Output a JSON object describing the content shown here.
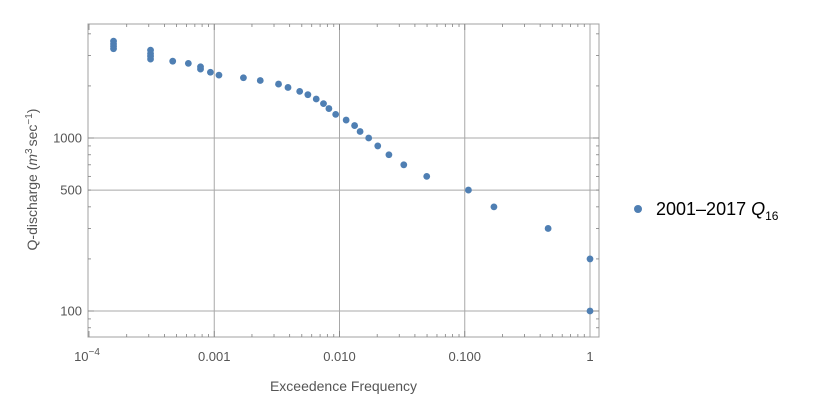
{
  "chart_data": {
    "type": "scatter",
    "xlabel": "Exceedence Frequency",
    "ylabel": "Q-discharge (m3 sec-1)",
    "ylabel_parts": {
      "a": "Q-discharge (",
      "b": "m",
      "c": "3",
      "d": "sec",
      "e": "−1",
      "f": ")"
    },
    "x_scale": "log",
    "y_scale": "log",
    "xlim": [
      0.0001,
      1.0
    ],
    "ylim": [
      80,
      4200
    ],
    "grid": true,
    "legend_position": "right",
    "x_major_ticks": [
      {
        "value": 0.0001,
        "base": "10",
        "exp": "−4"
      },
      {
        "value": 0.001,
        "label": "0.001"
      },
      {
        "value": 0.01,
        "label": "0.010"
      },
      {
        "value": 0.1,
        "label": "0.100"
      },
      {
        "value": 1.0,
        "label": "1"
      }
    ],
    "y_major_ticks": [
      {
        "value": 100,
        "label": "100"
      },
      {
        "value": 500,
        "label": "500"
      },
      {
        "value": 1000,
        "label": "1000"
      }
    ],
    "series": [
      {
        "name": "2001–2017 Q16",
        "name_parts": {
          "main": "2001–2017 ",
          "q": "Q",
          "sub": "16"
        },
        "color": "#4f7fb3",
        "points": [
          [
            0.000157,
            3630
          ],
          [
            0.000157,
            3500
          ],
          [
            0.000157,
            3390
          ],
          [
            0.000157,
            3280
          ],
          [
            0.00031,
            3220
          ],
          [
            0.00031,
            3080
          ],
          [
            0.00031,
            2970
          ],
          [
            0.00031,
            2860
          ],
          [
            0.000466,
            2780
          ],
          [
            0.000621,
            2700
          ],
          [
            0.000777,
            2580
          ],
          [
            0.000777,
            2500
          ],
          [
            0.000932,
            2400
          ],
          [
            0.00109,
            2310
          ],
          [
            0.00171,
            2230
          ],
          [
            0.00233,
            2150
          ],
          [
            0.00326,
            2050
          ],
          [
            0.00388,
            1960
          ],
          [
            0.00481,
            1860
          ],
          [
            0.00559,
            1780
          ],
          [
            0.00652,
            1680
          ],
          [
            0.00745,
            1580
          ],
          [
            0.00823,
            1480
          ],
          [
            0.00932,
            1370
          ],
          [
            0.0113,
            1270
          ],
          [
            0.0132,
            1180
          ],
          [
            0.0146,
            1090
          ],
          [
            0.0171,
            1000
          ],
          [
            0.0202,
            900
          ],
          [
            0.0248,
            800
          ],
          [
            0.0326,
            700
          ],
          [
            0.0497,
            600
          ],
          [
            0.107,
            500
          ],
          [
            0.171,
            400
          ],
          [
            0.463,
            300
          ],
          [
            1.0,
            200
          ],
          [
            1.0,
            100
          ]
        ]
      }
    ]
  }
}
